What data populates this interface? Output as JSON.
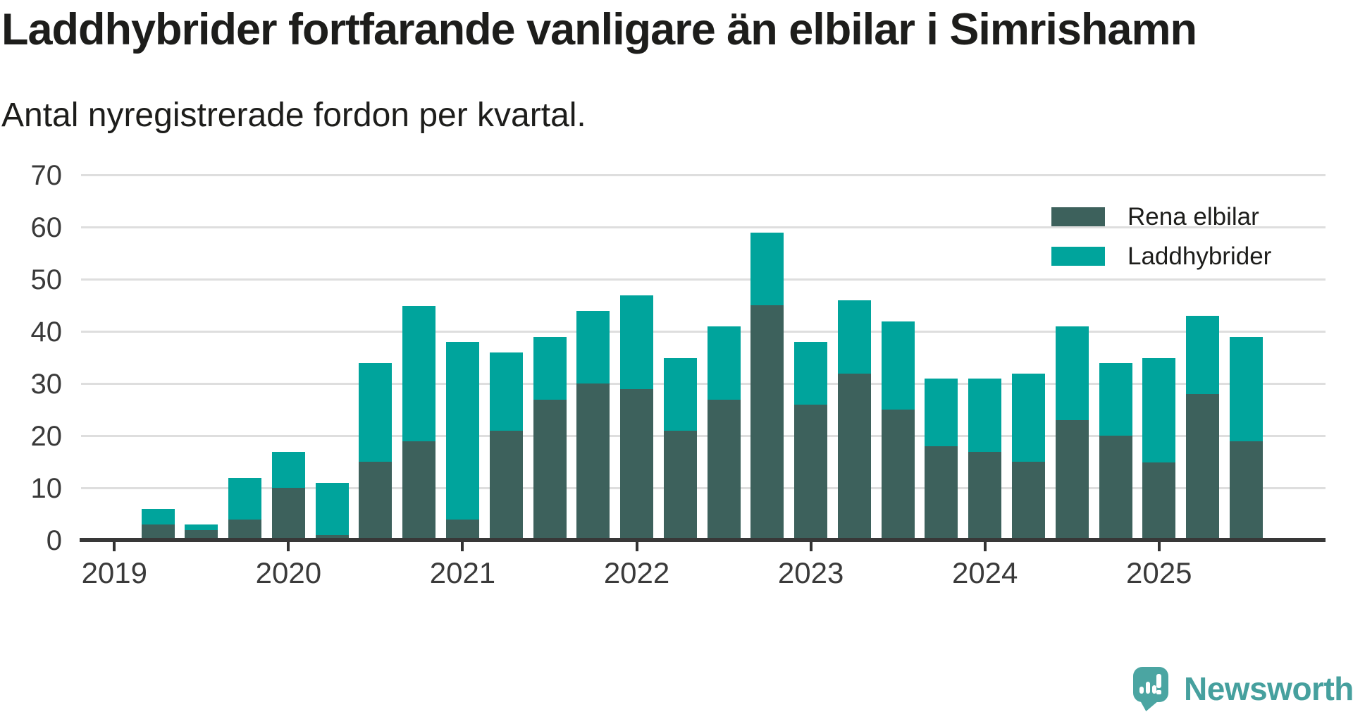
{
  "title": "Laddhybrider fortfarande vanligare än elbilar i Simrishamn",
  "subtitle": "Antal nyregistrerade fordon per kvartal.",
  "legend": [
    {
      "label": "Rena elbilar",
      "color": "#3d615c"
    },
    {
      "label": "Laddhybrider",
      "color": "#00a49c"
    }
  ],
  "branding": {
    "logo_text": "Newsworthy",
    "logo_color": "#46a09e"
  },
  "chart_data": {
    "type": "bar",
    "stacked": true,
    "title": "Laddhybrider fortfarande vanligare än elbilar i Simrishamn",
    "subtitle": "Antal nyregistrerade fordon per kvartal.",
    "grid": "horizontal",
    "legend_position": "top-right",
    "ylim": [
      0,
      70
    ],
    "yticks": [
      0,
      10,
      20,
      30,
      40,
      50,
      60,
      70
    ],
    "x_year_ticks": [
      "2019",
      "2020",
      "2021",
      "2022",
      "2023",
      "2024",
      "2025"
    ],
    "quarters": [
      "2019 Q1",
      "2019 Q2",
      "2019 Q3",
      "2019 Q4",
      "2020 Q1",
      "2020 Q2",
      "2020 Q3",
      "2020 Q4",
      "2021 Q1",
      "2021 Q2",
      "2021 Q3",
      "2021 Q4",
      "2022 Q1",
      "2022 Q2",
      "2022 Q3",
      "2022 Q4",
      "2023 Q1",
      "2023 Q2",
      "2023 Q3",
      "2023 Q4",
      "2024 Q1",
      "2024 Q2",
      "2024 Q3",
      "2024 Q4",
      "2025 Q1",
      "2025 Q2",
      "2025 Q3"
    ],
    "series": [
      {
        "name": "Rena elbilar",
        "color": "#3d615c",
        "values": [
          0,
          3,
          2,
          4,
          10,
          1,
          15,
          19,
          4,
          21,
          27,
          30,
          29,
          21,
          27,
          45,
          26,
          32,
          25,
          18,
          17,
          15,
          23,
          20,
          15,
          28,
          19
        ]
      },
      {
        "name": "Laddhybrider",
        "color": "#00a49c",
        "values": [
          0,
          3,
          1,
          8,
          7,
          10,
          19,
          26,
          34,
          15,
          12,
          14,
          18,
          14,
          14,
          14,
          12,
          14,
          17,
          13,
          14,
          17,
          18,
          14,
          20,
          15,
          20
        ]
      }
    ]
  }
}
